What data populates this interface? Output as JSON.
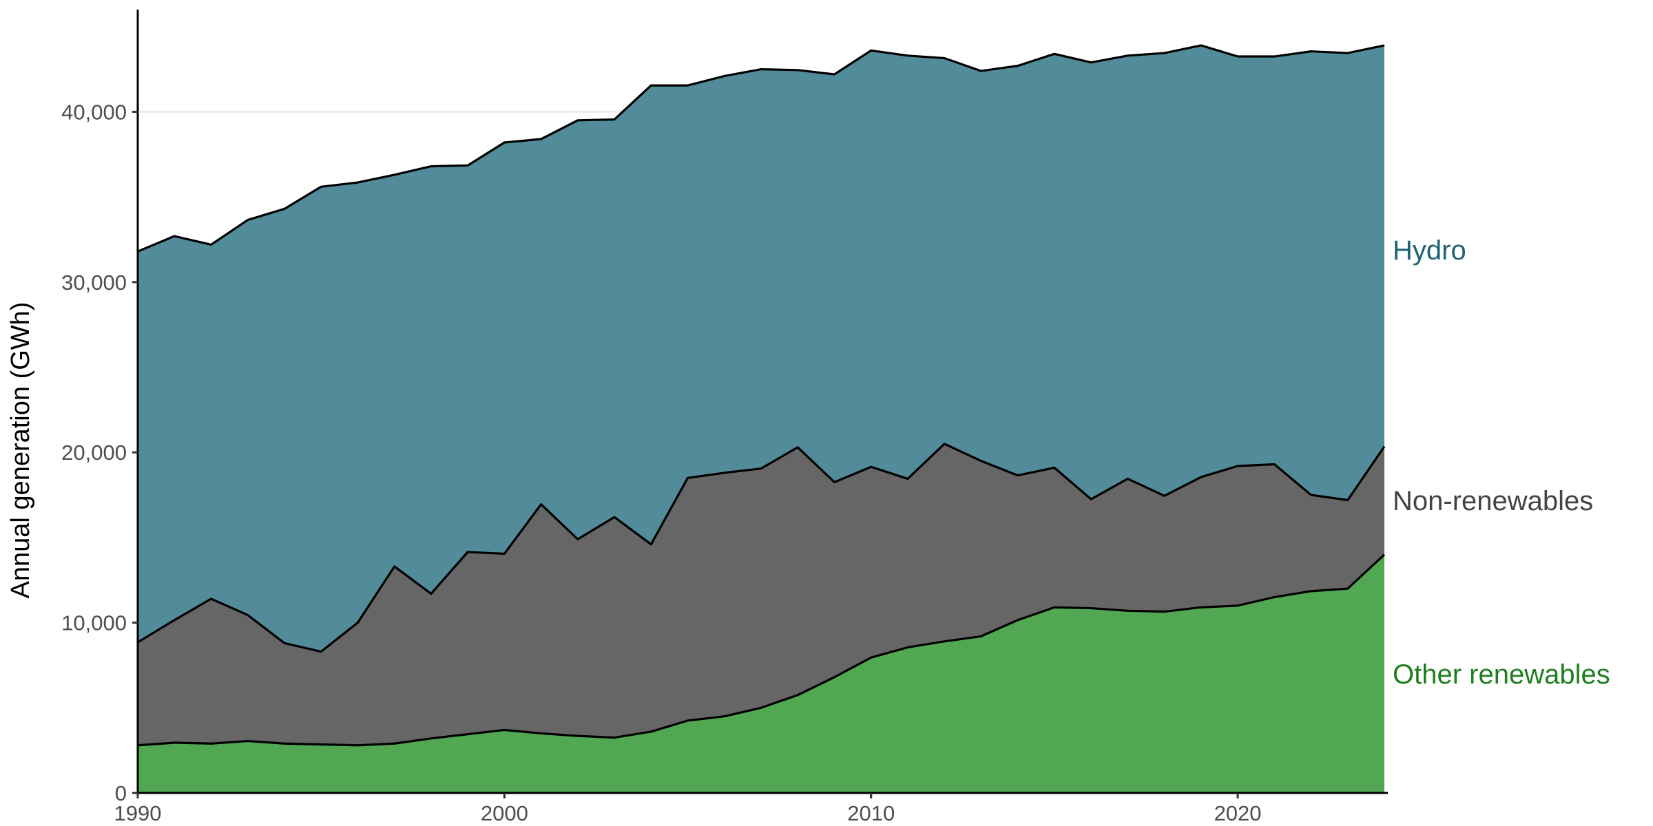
{
  "chart_data": {
    "type": "area",
    "stacked": true,
    "xlabel": "",
    "ylabel": "Annual generation (GWh)",
    "xlim": [
      1990,
      2024
    ],
    "ylim": [
      0,
      46000
    ],
    "x_ticks": [
      1990,
      2000,
      2010,
      2020
    ],
    "y_ticks": [
      0,
      10000,
      20000,
      30000,
      40000
    ],
    "y_tick_labels": [
      "0",
      "10,000",
      "20,000",
      "30,000",
      "40,000"
    ],
    "grid": "horizontal major",
    "legend": "direct labels at right end of series",
    "x": [
      1990,
      1991,
      1992,
      1993,
      1994,
      1995,
      1996,
      1997,
      1998,
      1999,
      2000,
      2001,
      2002,
      2003,
      2004,
      2005,
      2006,
      2007,
      2008,
      2009,
      2010,
      2011,
      2012,
      2013,
      2014,
      2015,
      2016,
      2017,
      2018,
      2019,
      2020,
      2021,
      2022,
      2023,
      2024
    ],
    "series": [
      {
        "name": "Other renewables",
        "color": "#52a852",
        "label_color": "#1f7f1f",
        "values": [
          2800,
          2950,
          2900,
          3050,
          2900,
          2850,
          2800,
          2900,
          3200,
          3450,
          3700,
          3500,
          3350,
          3250,
          3600,
          4250,
          4500,
          5000,
          5750,
          6800,
          7950,
          8550,
          8900,
          9200,
          10150,
          10900,
          10850,
          10700,
          10650,
          10900,
          11000,
          11500,
          11850,
          12000,
          14000
        ]
      },
      {
        "name": "Non-renewables",
        "color": "#666666",
        "label_color": "#444444",
        "values": [
          6050,
          7200,
          8500,
          7400,
          5900,
          5450,
          7200,
          10400,
          8500,
          10700,
          10350,
          13450,
          11550,
          12950,
          11000,
          14250,
          14300,
          14050,
          14550,
          11450,
          11200,
          9900,
          11600,
          10300,
          8500,
          8200,
          6400,
          7750,
          6800,
          7650,
          8200,
          7800,
          5650,
          5200,
          6350
        ]
      },
      {
        "name": "Hydro",
        "color": "#528c9a",
        "label_color": "#1f6475",
        "values": [
          22950,
          22550,
          20800,
          23200,
          25500,
          27300,
          25850,
          23000,
          25100,
          22700,
          24150,
          21450,
          24600,
          23350,
          26950,
          23050,
          23300,
          23450,
          22150,
          23950,
          24450,
          24850,
          22650,
          22900,
          24050,
          24300,
          25650,
          24850,
          26000,
          25350,
          24050,
          23950,
          26050,
          26250,
          23550
        ]
      }
    ]
  }
}
